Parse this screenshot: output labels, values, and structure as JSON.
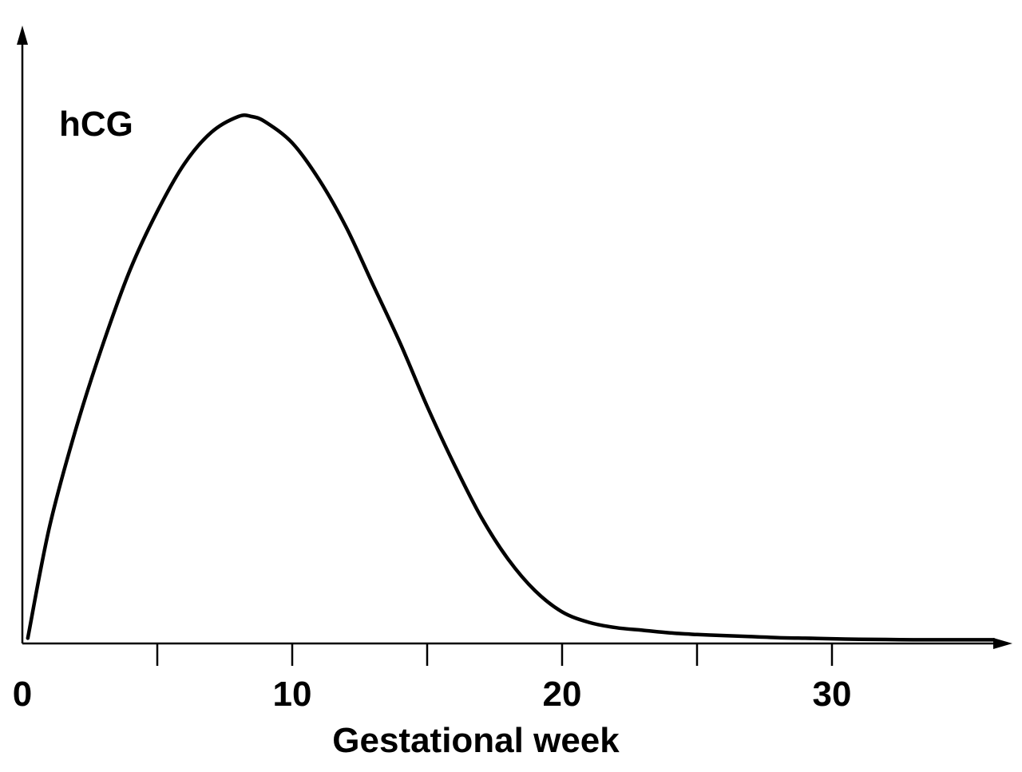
{
  "chart_data": {
    "type": "line",
    "ylabel": "hCG",
    "xlabel": "Gestational week",
    "xlim": [
      0,
      37
    ],
    "ylim": [
      0,
      101
    ],
    "x_ticks_labeled": [
      0,
      10,
      20,
      30
    ],
    "x_ticks_minor": [
      5,
      15,
      25
    ],
    "y_ticks": [],
    "grid": false,
    "legend": "none",
    "series": [
      {
        "color": "#000000",
        "x": [
          0.2,
          1,
          2,
          3,
          4,
          5,
          6,
          7,
          8,
          8.5,
          9,
          10,
          11,
          12,
          13,
          14,
          15,
          16,
          17,
          18,
          19,
          20,
          21,
          22,
          23,
          24,
          25,
          26,
          27,
          28,
          29,
          30,
          31,
          32,
          33,
          34,
          35,
          36
        ],
        "y": [
          1,
          22,
          41,
          57,
          71,
          82,
          91,
          97,
          100,
          100,
          99,
          95,
          88,
          79,
          68,
          57,
          45,
          34,
          24,
          16,
          10,
          6,
          4,
          3,
          2.5,
          2,
          1.7,
          1.5,
          1.3,
          1.1,
          1.0,
          0.9,
          0.8,
          0.75,
          0.7,
          0.7,
          0.7,
          0.7
        ]
      }
    ]
  }
}
